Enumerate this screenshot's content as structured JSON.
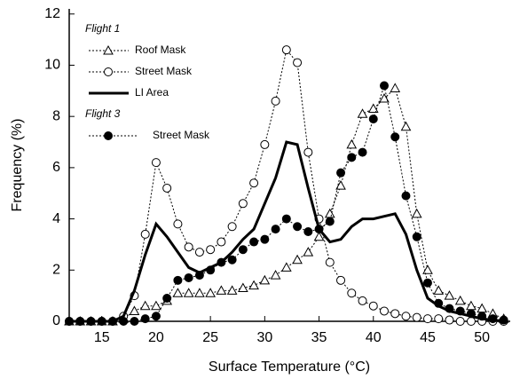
{
  "chart_data": {
    "type": "line",
    "x_label": "Surface Temperature (°C)",
    "y_label": "Frequency (%)",
    "xlim": [
      12,
      52.6
    ],
    "ylim": [
      0,
      12.2
    ],
    "xticks": [
      15,
      20,
      25,
      30,
      35,
      40,
      45,
      50
    ],
    "yticks": [
      0,
      2,
      4,
      6,
      8,
      10,
      12
    ],
    "grid": false,
    "legend_position": "upper left",
    "legend_headings": [
      "Flight 1",
      "Flight 3"
    ],
    "x": [
      12,
      13,
      14,
      15,
      16,
      17,
      18,
      19,
      20,
      21,
      22,
      23,
      24,
      25,
      26,
      27,
      28,
      29,
      30,
      31,
      32,
      33,
      34,
      35,
      36,
      37,
      38,
      39,
      40,
      41,
      42,
      43,
      44,
      45,
      46,
      47,
      48,
      49,
      50,
      51,
      52
    ],
    "series": [
      {
        "name": "Roof Mask",
        "color": "#000000",
        "marker": "triangle-open",
        "line": "dotted",
        "values": [
          0,
          0,
          0,
          0,
          0,
          0.1,
          0.4,
          0.6,
          0.6,
          0.8,
          1.1,
          1.1,
          1.1,
          1.1,
          1.2,
          1.2,
          1.3,
          1.4,
          1.6,
          1.8,
          2.1,
          2.4,
          2.7,
          3.3,
          4.2,
          5.3,
          6.9,
          8.1,
          8.3,
          8.7,
          9.1,
          7.6,
          4.2,
          2.0,
          1.2,
          1.0,
          0.8,
          0.6,
          0.5,
          0.3,
          0.1
        ]
      },
      {
        "name": "Street Mask",
        "color": "#000000",
        "marker": "circle-open",
        "line": "dotted",
        "values": [
          0,
          0,
          0,
          0,
          0,
          0.2,
          1.0,
          3.4,
          6.2,
          5.2,
          3.8,
          2.9,
          2.7,
          2.8,
          3.1,
          3.7,
          4.6,
          5.4,
          6.9,
          8.6,
          10.6,
          10.1,
          6.6,
          4.0,
          2.3,
          1.6,
          1.1,
          0.8,
          0.6,
          0.4,
          0.3,
          0.2,
          0.15,
          0.1,
          0.1,
          0.05,
          0,
          0,
          0,
          0,
          0
        ]
      },
      {
        "name": "LI Area",
        "color": "#000000",
        "marker": "none",
        "line": "solid",
        "values": [
          0,
          0,
          0,
          0,
          0,
          0.2,
          1.2,
          2.6,
          3.8,
          3.3,
          2.7,
          2.1,
          1.9,
          2.1,
          2.3,
          2.7,
          3.2,
          3.6,
          4.6,
          5.6,
          7.0,
          6.9,
          5.2,
          3.6,
          3.1,
          3.2,
          3.7,
          4.0,
          4.0,
          4.1,
          4.2,
          3.4,
          2.0,
          0.9,
          0.6,
          0.4,
          0.3,
          0.2,
          0.1,
          0.05,
          0
        ]
      },
      {
        "name": "Street Mask",
        "color": "#000000",
        "marker": "circle-filled",
        "line": "dotted",
        "values": [
          0,
          0,
          0,
          0,
          0,
          0,
          0,
          0.1,
          0.2,
          0.9,
          1.6,
          1.7,
          1.8,
          2.0,
          2.3,
          2.4,
          2.8,
          3.1,
          3.2,
          3.6,
          4.0,
          3.7,
          3.5,
          3.6,
          3.9,
          5.8,
          6.4,
          6.6,
          7.9,
          9.2,
          7.2,
          4.9,
          3.3,
          1.5,
          0.7,
          0.5,
          0.4,
          0.3,
          0.2,
          0.1,
          0.05
        ]
      }
    ]
  }
}
